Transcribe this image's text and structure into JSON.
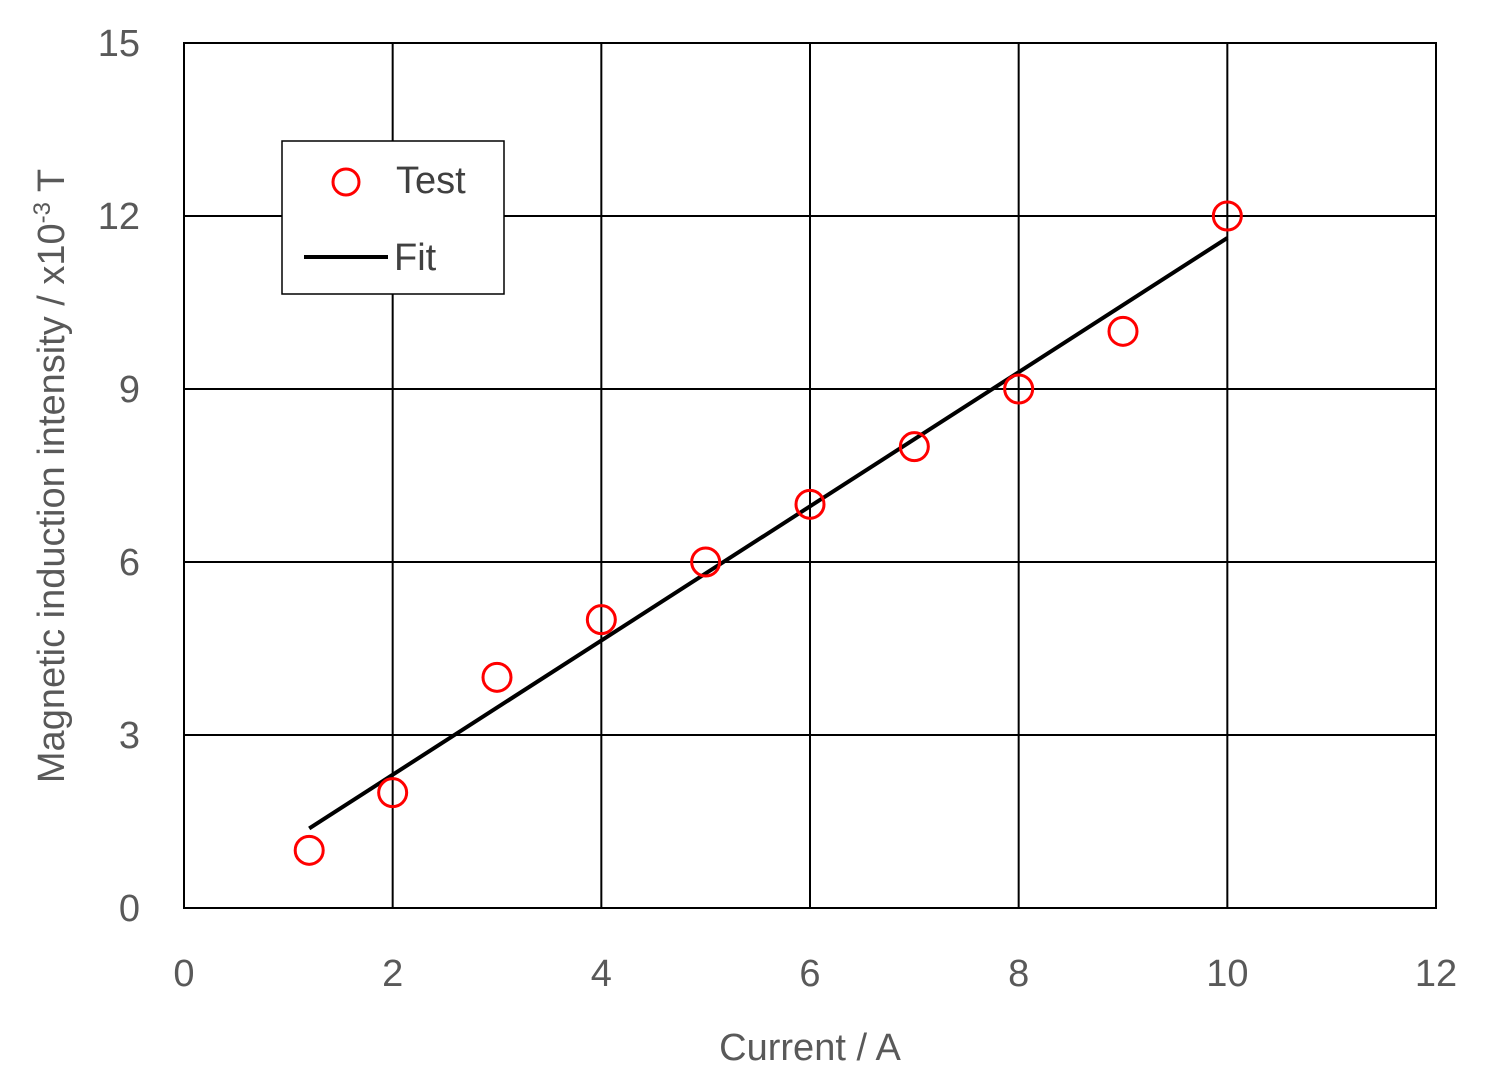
{
  "chart_data": {
    "type": "scatter",
    "xlabel": "Current / A",
    "ylabel": {
      "main": "Magnetic induction intensity / x10",
      "exponent": "-3",
      "unit": " T"
    },
    "xlim": [
      0,
      12
    ],
    "ylim": [
      0,
      15
    ],
    "xticks": [
      0,
      2,
      4,
      6,
      8,
      10,
      12
    ],
    "yticks": [
      0,
      3,
      6,
      9,
      12,
      15
    ],
    "grid": true,
    "legend_placement": "top-left",
    "series": [
      {
        "name": "Test",
        "kind": "markers",
        "marker": "open-circle",
        "color": "#ff0000",
        "x": [
          1.2,
          2,
          3,
          4,
          5,
          6,
          7,
          8,
          9,
          10
        ],
        "y": [
          1,
          2,
          4,
          5,
          6,
          7,
          8,
          9,
          10,
          12
        ]
      },
      {
        "name": "Fit",
        "kind": "line",
        "color": "#000000",
        "x": [
          1.2,
          10
        ],
        "y": [
          1.38,
          11.62
        ]
      }
    ]
  }
}
